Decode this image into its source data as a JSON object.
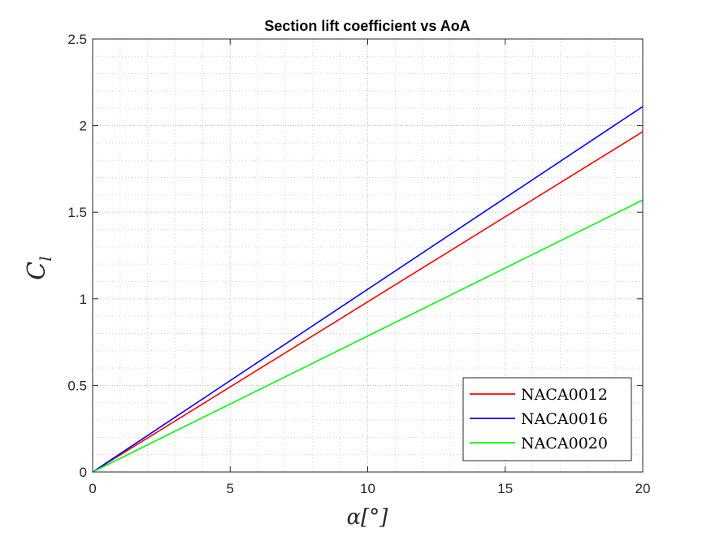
{
  "chart_data": {
    "type": "line",
    "title": "Section lift coefficient vs AoA",
    "xlabel": "α[°]",
    "ylabel": "C_l",
    "xlim": [
      0,
      20
    ],
    "ylim": [
      0,
      2.5
    ],
    "xticks": [
      "0",
      "5",
      "10",
      "15",
      "20"
    ],
    "yticks": [
      "0",
      "0.5",
      "1",
      "1.5",
      "2",
      "2.5"
    ],
    "grid": true,
    "minor_grid": true,
    "legend_position": "bottom-right",
    "series": [
      {
        "name": "NACA0012",
        "color": "#ff0000",
        "x": [
          0,
          20
        ],
        "y": [
          0,
          1.965
        ]
      },
      {
        "name": "NACA0016",
        "color": "#0000ff",
        "x": [
          0,
          20
        ],
        "y": [
          0,
          2.11
        ]
      },
      {
        "name": "NACA0020",
        "color": "#00ff00",
        "x": [
          0,
          20
        ],
        "y": [
          0,
          1.57
        ]
      }
    ]
  }
}
